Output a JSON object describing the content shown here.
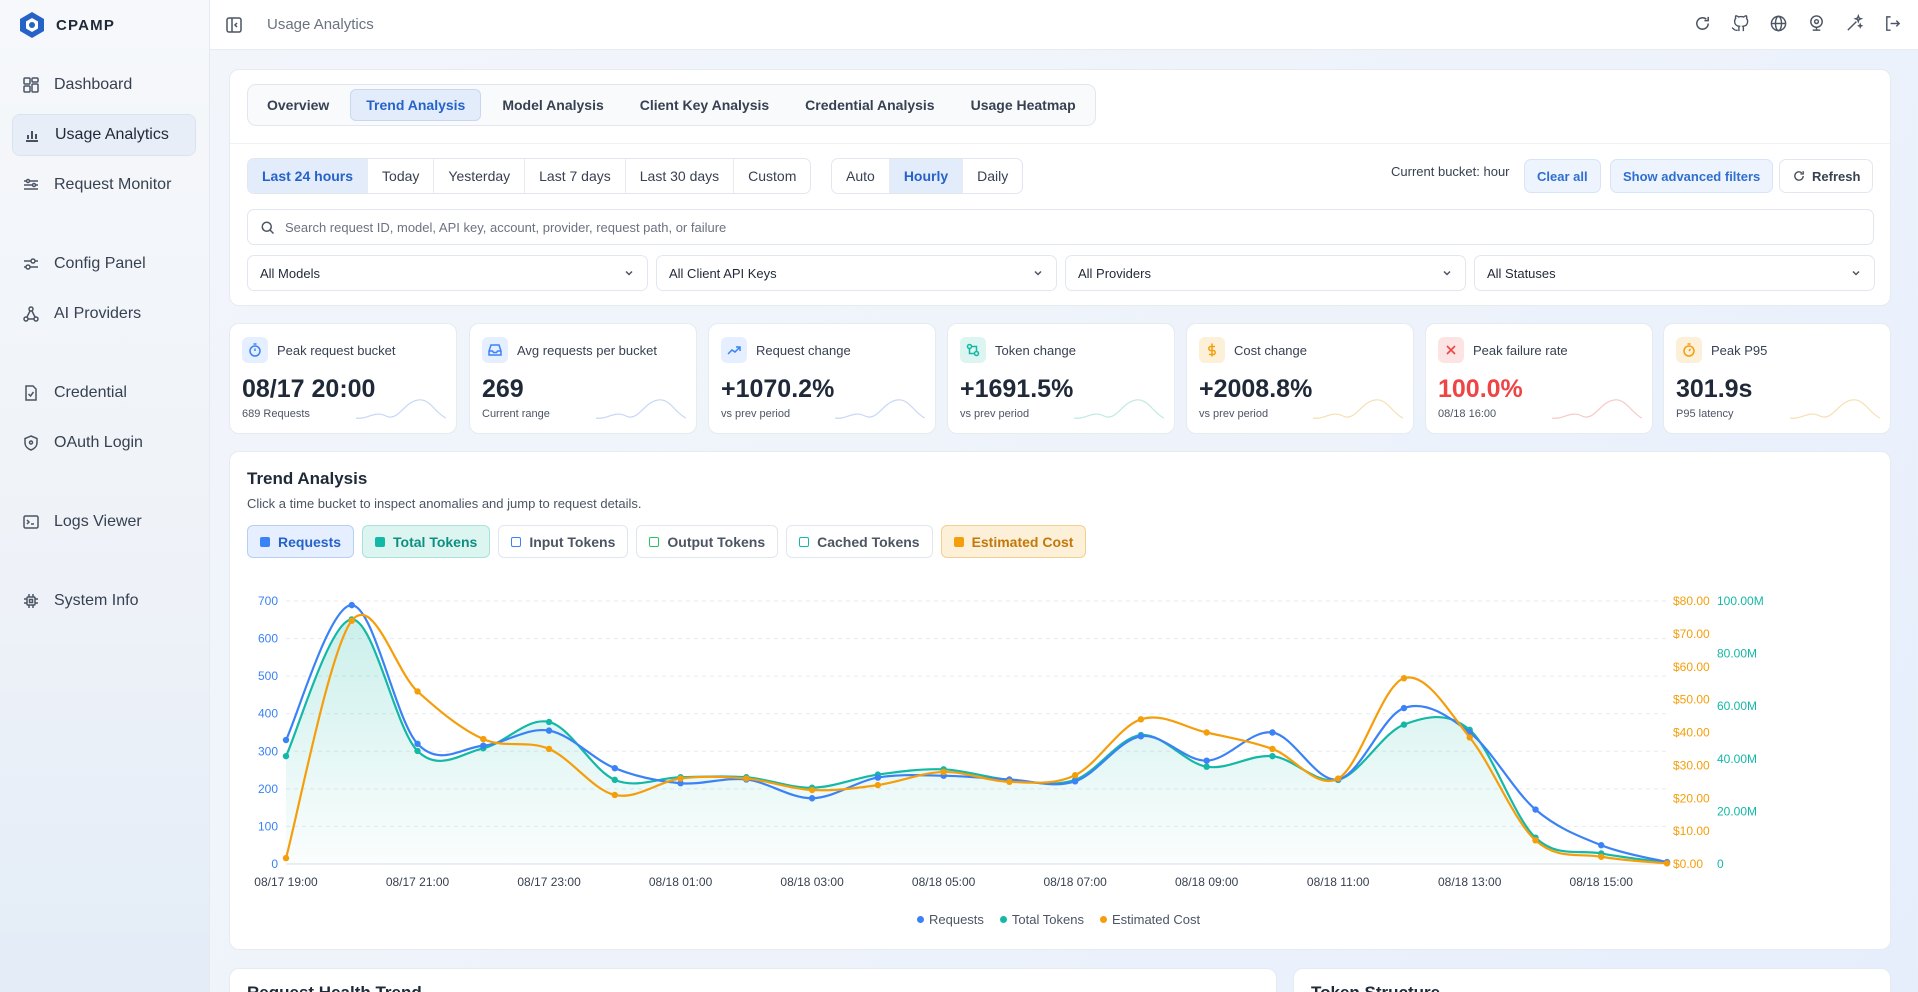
{
  "app": {
    "name": "CPAMP"
  },
  "sidebar": {
    "items": [
      {
        "label": "Dashboard",
        "icon": "dashboard-icon"
      },
      {
        "label": "Usage Analytics",
        "icon": "bar-chart-icon",
        "active": true
      },
      {
        "label": "Request Monitor",
        "icon": "sliders-icon"
      },
      {
        "label": "Config Panel",
        "icon": "settings-sliders-icon"
      },
      {
        "label": "AI Providers",
        "icon": "network-icon"
      },
      {
        "label": "Credential",
        "icon": "file-check-icon"
      },
      {
        "label": "OAuth Login",
        "icon": "shield-icon"
      },
      {
        "label": "Logs Viewer",
        "icon": "terminal-icon"
      },
      {
        "label": "System Info",
        "icon": "cpu-icon"
      }
    ]
  },
  "header": {
    "title": "Usage Analytics"
  },
  "tabs": [
    "Overview",
    "Trend Analysis",
    "Model Analysis",
    "Client Key Analysis",
    "Credential Analysis",
    "Usage Heatmap"
  ],
  "active_tab": "Trend Analysis",
  "ranges": [
    "Last 24 hours",
    "Today",
    "Yesterday",
    "Last 7 days",
    "Last 30 days",
    "Custom"
  ],
  "active_range": "Last 24 hours",
  "granularity": [
    "Auto",
    "Hourly",
    "Daily"
  ],
  "active_granularity": "Hourly",
  "toolbar": {
    "bucket_text": "Current bucket: hour",
    "clear_all": "Clear all",
    "advanced": "Show advanced filters",
    "refresh": "Refresh"
  },
  "search": {
    "placeholder": "Search request ID, model, API key, account, provider, request path, or failure"
  },
  "filters": {
    "models": "All Models",
    "keys": "All Client API Keys",
    "providers": "All Providers",
    "statuses": "All Statuses"
  },
  "kpis": [
    {
      "label": "Peak request bucket",
      "value": "08/17 20:00",
      "sub": "689 Requests",
      "color": "#3b82f6"
    },
    {
      "label": "Avg requests per bucket",
      "value": "269",
      "sub": "Current range",
      "color": "#3b82f6"
    },
    {
      "label": "Request change",
      "value": "+1070.2%",
      "sub": "vs prev period",
      "color": "#3b82f6"
    },
    {
      "label": "Token change",
      "value": "+1691.5%",
      "sub": "vs prev period",
      "color": "#14b8a6"
    },
    {
      "label": "Cost change",
      "value": "+2008.8%",
      "sub": "vs prev period",
      "color": "#f59e0b"
    },
    {
      "label": "Peak failure rate",
      "value": "100.0%",
      "sub": "08/18 16:00",
      "color": "#ef4444"
    },
    {
      "label": "Peak P95",
      "value": "301.9s",
      "sub": "P95 latency",
      "color": "#f59e0b"
    }
  ],
  "trend": {
    "title": "Trend Analysis",
    "subtitle": "Click a time bucket to inspect anomalies and jump to request details.",
    "toggles": [
      {
        "label": "Requests",
        "color": "#3b82f6",
        "on": true
      },
      {
        "label": "Total Tokens",
        "color": "#14b8a6",
        "on": true
      },
      {
        "label": "Input Tokens",
        "color": "#3b82f6",
        "on": false
      },
      {
        "label": "Output Tokens",
        "color": "#22c55e",
        "on": false
      },
      {
        "label": "Cached Tokens",
        "color": "#14b8a6",
        "on": false
      },
      {
        "label": "Estimated Cost",
        "color": "#f59e0b",
        "on": true
      }
    ]
  },
  "chart_data": {
    "type": "line",
    "x": [
      "08/17 19:00",
      "08/17 20:00",
      "08/17 21:00",
      "08/17 22:00",
      "08/17 23:00",
      "08/18 00:00",
      "08/18 01:00",
      "08/18 02:00",
      "08/18 03:00",
      "08/18 04:00",
      "08/18 05:00",
      "08/18 06:00",
      "08/18 07:00",
      "08/18 08:00",
      "08/18 09:00",
      "08/18 10:00",
      "08/18 11:00",
      "08/18 12:00",
      "08/18 13:00",
      "08/18 14:00",
      "08/18 15:00",
      "08/18 16:00"
    ],
    "x_tick_labels": [
      "08/17 19:00",
      "08/17 21:00",
      "08/17 23:00",
      "08/18 01:00",
      "08/18 03:00",
      "08/18 05:00",
      "08/18 07:00",
      "08/18 09:00",
      "08/18 11:00",
      "08/18 13:00",
      "08/18 15:00"
    ],
    "series": [
      {
        "name": "Requests",
        "axis": "left",
        "color": "#3b82f6",
        "values": [
          330,
          689,
          320,
          315,
          355,
          255,
          215,
          225,
          175,
          230,
          235,
          225,
          220,
          340,
          275,
          350,
          225,
          415,
          350,
          145,
          50,
          5
        ]
      },
      {
        "name": "Total Tokens",
        "axis": "right2",
        "color": "#14b8a6",
        "values": [
          41,
          93,
          43,
          44,
          54,
          32,
          33,
          33,
          29,
          34,
          36,
          32,
          32,
          49,
          37,
          41,
          32,
          53,
          51,
          10,
          4,
          0.5
        ]
      },
      {
        "name": "Estimated Cost",
        "axis": "right1",
        "color": "#f59e0b",
        "values": [
          1.8,
          74,
          52.5,
          38,
          35,
          21,
          26,
          26,
          22.5,
          24,
          28,
          25,
          27,
          44,
          40,
          35,
          26,
          56.5,
          38.5,
          7.2,
          2.2,
          0.2
        ]
      }
    ],
    "yaxis_left": {
      "ticks": [
        "0",
        "100",
        "200",
        "300",
        "400",
        "500",
        "600",
        "700"
      ],
      "ylim": [
        0,
        700
      ]
    },
    "yaxis_right1": {
      "ticks": [
        "$0.00",
        "$10.00",
        "$20.00",
        "$30.00",
        "$40.00",
        "$50.00",
        "$60.00",
        "$70.00",
        "$80.00"
      ],
      "ylim": [
        0,
        80
      ]
    },
    "yaxis_right2": {
      "ticks": [
        "0",
        "20.00M",
        "40.00M",
        "60.00M",
        "80.00M",
        "100.00M"
      ],
      "ylim": [
        0,
        100
      ]
    },
    "legend": [
      "Requests",
      "Total Tokens",
      "Estimated Cost"
    ],
    "legend_position": "bottom",
    "grid": true
  },
  "bottom": {
    "left_title": "Request Health Trend",
    "right_title": "Token Structure"
  }
}
